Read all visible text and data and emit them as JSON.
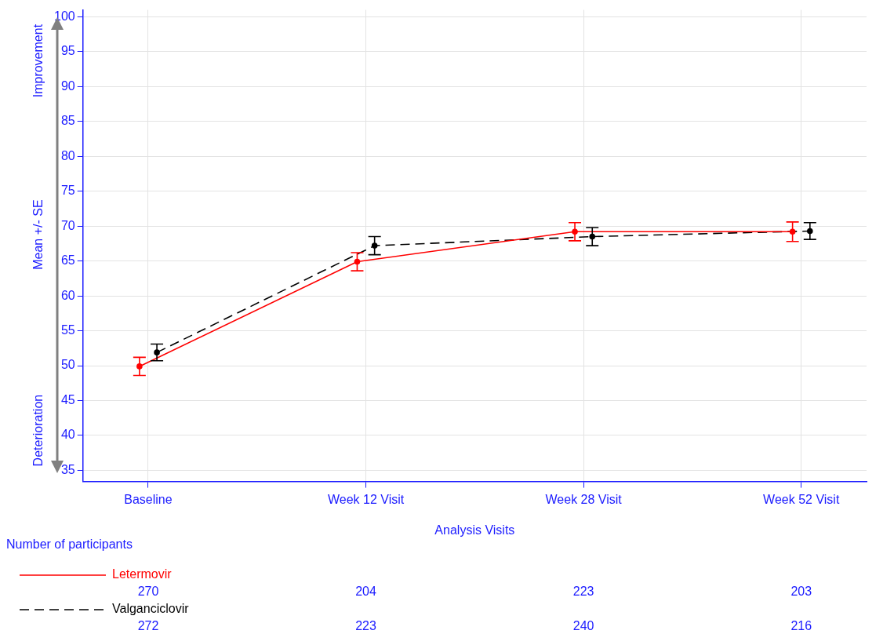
{
  "chart_data": {
    "type": "line",
    "xlabel": "Analysis Visits",
    "ylabel": "Mean +/- SE",
    "categories": [
      "Baseline",
      "Week 12 Visit",
      "Week 28 Visit",
      "Week 52 Visit"
    ],
    "ylim": [
      33.4,
      101
    ],
    "yticks": [
      35,
      40,
      45,
      50,
      55,
      60,
      65,
      70,
      75,
      80,
      85,
      90,
      95,
      100
    ],
    "grid": true,
    "legend": "bottom",
    "marker": "circle",
    "series": [
      {
        "name": "Letermovir",
        "color": "#ff0000",
        "line_style": "solid",
        "values": [
          49.9,
          64.9,
          69.2,
          69.2
        ],
        "errors": [
          1.3,
          1.3,
          1.3,
          1.4
        ]
      },
      {
        "name": "Valganciclovir",
        "color": "#000000",
        "line_style": "dashed",
        "values": [
          51.9,
          67.2,
          68.5,
          69.3
        ],
        "errors": [
          1.2,
          1.3,
          1.3,
          1.2
        ]
      }
    ],
    "annotations": [
      "Improvement",
      "Deterioration",
      "Number of participants",
      "270",
      "204",
      "223",
      "203",
      "272",
      "223",
      "240",
      "216"
    ]
  }
}
